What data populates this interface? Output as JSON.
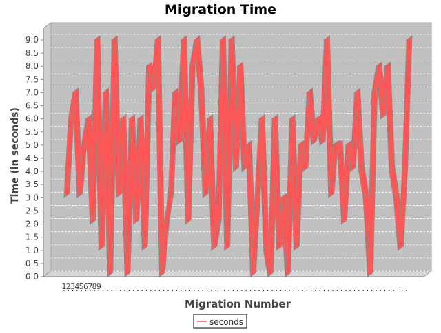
{
  "chart_data": {
    "type": "line",
    "title": "Migration Time",
    "xlabel": "Migration Number",
    "ylabel": "Time (in seconds)",
    "ylim": [
      0,
      9.0
    ],
    "y_ticks": [
      0.0,
      0.5,
      1.0,
      1.5,
      2.0,
      2.5,
      3.0,
      3.5,
      4.0,
      4.5,
      5.0,
      5.5,
      6.0,
      6.5,
      7.0,
      7.5,
      8.0,
      8.5,
      9.0
    ],
    "y_tick_labels": [
      "0.0",
      "0.5",
      "1.0",
      "1.5",
      "2.0",
      "2.5",
      "3.0",
      "3.5",
      "4.0",
      "4.5",
      "5.0",
      "5.5",
      "6.0",
      "6.5",
      "7.0",
      "7.5",
      "8.0",
      "8.5",
      "9.0"
    ],
    "x_tick_labels": [
      "1",
      "2",
      "3",
      "4",
      "5",
      "6",
      "7",
      "8",
      "9"
    ],
    "grid": true,
    "legend_placement": "bottom",
    "rendering": "3d",
    "series": [
      {
        "name": "seconds",
        "color": "#ff5555",
        "x": [
          1,
          2,
          3,
          4,
          5,
          6,
          7,
          8,
          9,
          10,
          11,
          12,
          13,
          14,
          15,
          16,
          17,
          18,
          19,
          20,
          21,
          22,
          23,
          24,
          25,
          26,
          27,
          28,
          29,
          30,
          31,
          32,
          33,
          34,
          35,
          36,
          37,
          38,
          39,
          40,
          41,
          42,
          43,
          44,
          45,
          46,
          47,
          48,
          49,
          50,
          51,
          52,
          53,
          54,
          55,
          56,
          57,
          58,
          59,
          60,
          61,
          62,
          63,
          64,
          65,
          66,
          67,
          68,
          69,
          70,
          71,
          72,
          73,
          74,
          75,
          76,
          77,
          78,
          79,
          80
        ],
        "values": [
          3,
          6,
          7,
          3,
          5,
          6,
          2,
          9,
          1,
          7,
          0,
          9,
          3,
          6,
          0,
          6,
          2,
          6,
          1,
          8,
          7,
          9,
          0,
          2,
          3,
          7,
          5,
          9,
          2,
          8,
          9,
          7,
          3,
          6,
          1,
          2,
          9,
          1,
          9,
          4,
          8,
          4,
          5,
          0,
          3,
          6,
          1,
          0,
          6,
          1,
          3,
          0,
          6,
          1,
          5,
          4,
          7,
          5,
          6,
          5,
          9,
          3,
          5,
          5,
          2,
          5,
          4,
          7,
          4,
          3,
          0,
          7,
          8,
          6,
          8,
          4,
          3,
          1,
          4,
          9
        ]
      }
    ]
  },
  "legend": {
    "label": "seconds"
  }
}
